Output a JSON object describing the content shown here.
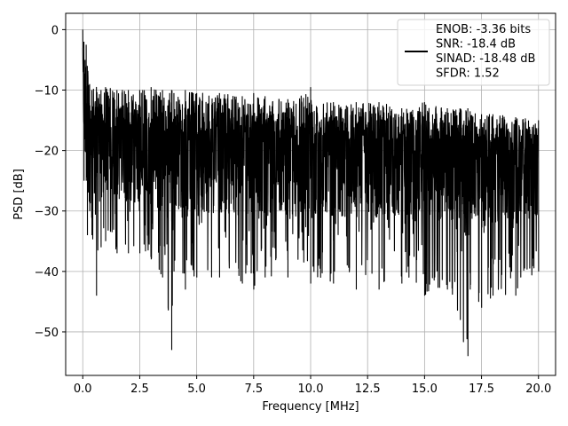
{
  "chart_data": {
    "type": "line",
    "xlabel": "Frequency [MHz]",
    "ylabel": "PSD [dB]",
    "xlim": [
      -0.75,
      20.75
    ],
    "ylim": [
      -57.2,
      2.7
    ],
    "xticks": [
      0.0,
      2.5,
      5.0,
      7.5,
      10.0,
      12.5,
      15.0,
      17.5,
      20.0
    ],
    "xtick_labels": [
      "0.0",
      "2.5",
      "5.0",
      "7.5",
      "10.0",
      "12.5",
      "15.0",
      "17.5",
      "20.0"
    ],
    "yticks": [
      0,
      -10,
      -20,
      -30,
      -40,
      -50
    ],
    "ytick_labels": [
      "0",
      "−10",
      "−20",
      "−30",
      "−40",
      "−50"
    ],
    "grid": true,
    "legend_position": "top-right",
    "line_color": "#000000",
    "series": [
      {
        "name": "ENOB: -3.36 bits\nSNR: -18.4 dB\nSINAD: -18.48 dB\nSFDR: 1.52",
        "x": [
          0.0,
          0.05,
          0.1,
          0.15,
          0.2,
          0.3,
          0.4,
          0.6,
          0.8,
          1.0,
          1.5,
          2.0,
          2.5,
          3.0,
          3.5,
          3.9,
          4.0,
          4.5,
          5.0,
          6.0,
          7.0,
          7.5,
          8.0,
          9.0,
          10.0,
          11.0,
          12.0,
          13.0,
          14.0,
          15.0,
          16.0,
          16.9,
          17.0,
          17.5,
          18.0,
          19.0,
          20.0
        ],
        "upper_envelope": [
          0,
          -2,
          -5,
          -2.5,
          -6,
          -9,
          -10,
          -9.5,
          -10,
          -9.5,
          -10,
          -10,
          -10,
          -9.5,
          -10,
          -10,
          -10.5,
          -10,
          -10.5,
          -10.5,
          -11,
          -10.5,
          -11,
          -11.5,
          -9.5,
          -12,
          -12,
          -12,
          -13,
          -12,
          -13,
          -13,
          -13.5,
          -14,
          -14,
          -14.5,
          -15
        ],
        "lower_envelope": [
          -3,
          -25,
          -20,
          -25,
          -34,
          -30,
          -34,
          -44,
          -36,
          -35,
          -37,
          -37,
          -37,
          -38,
          -41,
          -53,
          -40,
          -43,
          -41,
          -41,
          -42,
          -43,
          -41,
          -41,
          -42,
          -42,
          -43,
          -43,
          -42,
          -44,
          -43,
          -54,
          -43,
          -46,
          -44,
          -44,
          -40
        ],
        "mean_level": [
          -6,
          -12,
          -18,
          -15,
          -20,
          -20,
          -21,
          -21,
          -21,
          -21,
          -21,
          -21,
          -21.5,
          -21.5,
          -21.5,
          -22,
          -22,
          -22,
          -22,
          -22,
          -22,
          -22,
          -22,
          -22.5,
          -22.5,
          -22.5,
          -23,
          -23,
          -23,
          -23,
          -23.5,
          -23.5,
          -23.5,
          -24,
          -24,
          -24,
          -24
        ]
      }
    ]
  }
}
